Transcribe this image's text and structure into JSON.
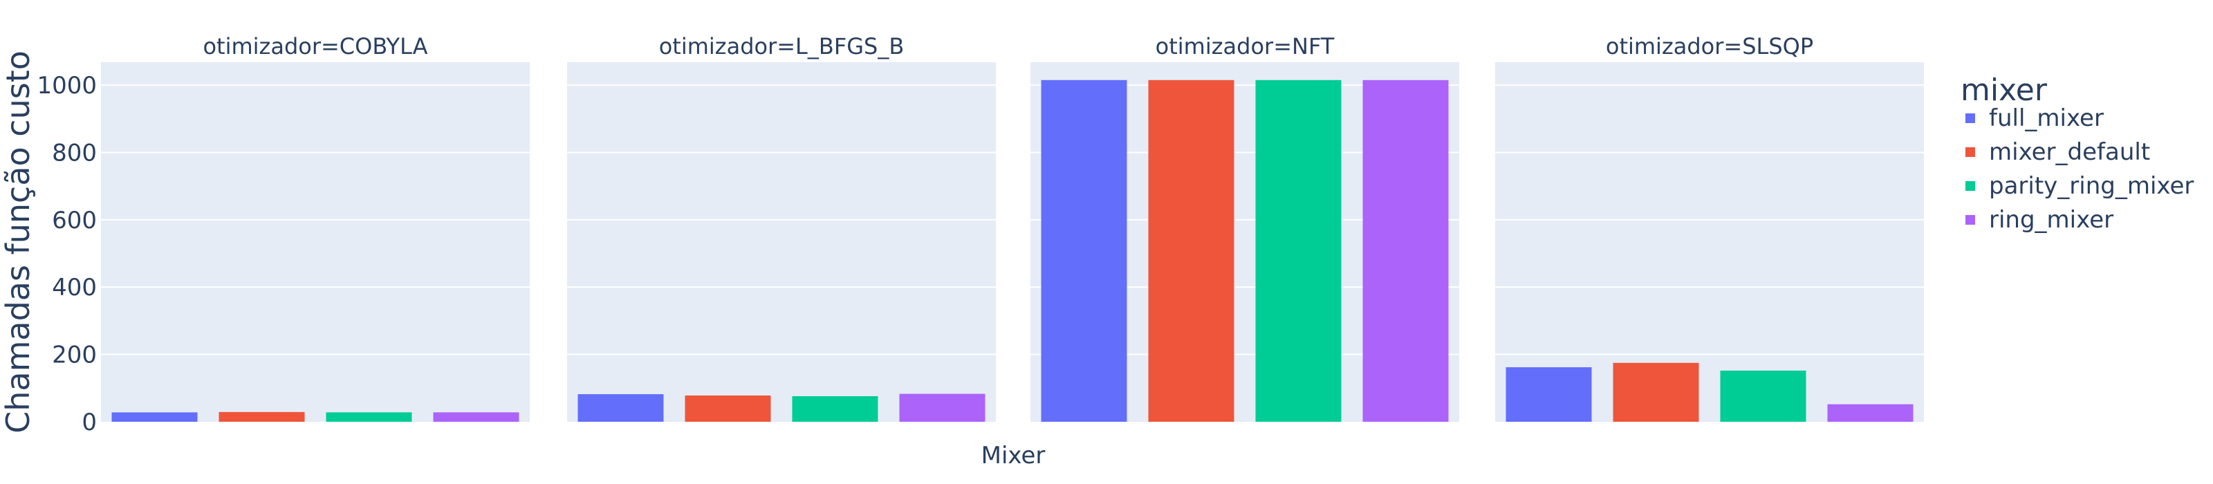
{
  "chart_data": {
    "type": "bar",
    "facet_label": "otimizador",
    "facets": [
      "COBYLA",
      "L_BFGS_B",
      "NFT",
      "SLSQP"
    ],
    "facet_titles": [
      "otimizador=COBYLA",
      "otimizador=L_BFGS_B",
      "otimizador=NFT",
      "otimizador=SLSQP"
    ],
    "categories": [
      "full_mixer",
      "mixer_default",
      "parity_ring_mixer",
      "ring_mixer"
    ],
    "series": [
      {
        "name": "full_mixer",
        "color": "#636efa",
        "values": [
          28,
          82,
          1015,
          162
        ]
      },
      {
        "name": "mixer_default",
        "color": "#ef553b",
        "values": [
          29,
          78,
          1015,
          175
        ]
      },
      {
        "name": "parity_ring_mixer",
        "color": "#00cc96",
        "values": [
          28,
          76,
          1015,
          152
        ]
      },
      {
        "name": "ring_mixer",
        "color": "#ab63fa",
        "values": [
          28,
          83,
          1015,
          52
        ]
      }
    ],
    "xlabel": "Mixer",
    "ylabel": "Chamadas função custo",
    "ylim": [
      0,
      1068
    ],
    "yticks": [
      0,
      200,
      400,
      600,
      800,
      1000
    ],
    "grid": true,
    "legend": {
      "title": "mixer",
      "position": "right"
    },
    "plot_bgcolor": "#e5ecf6"
  }
}
